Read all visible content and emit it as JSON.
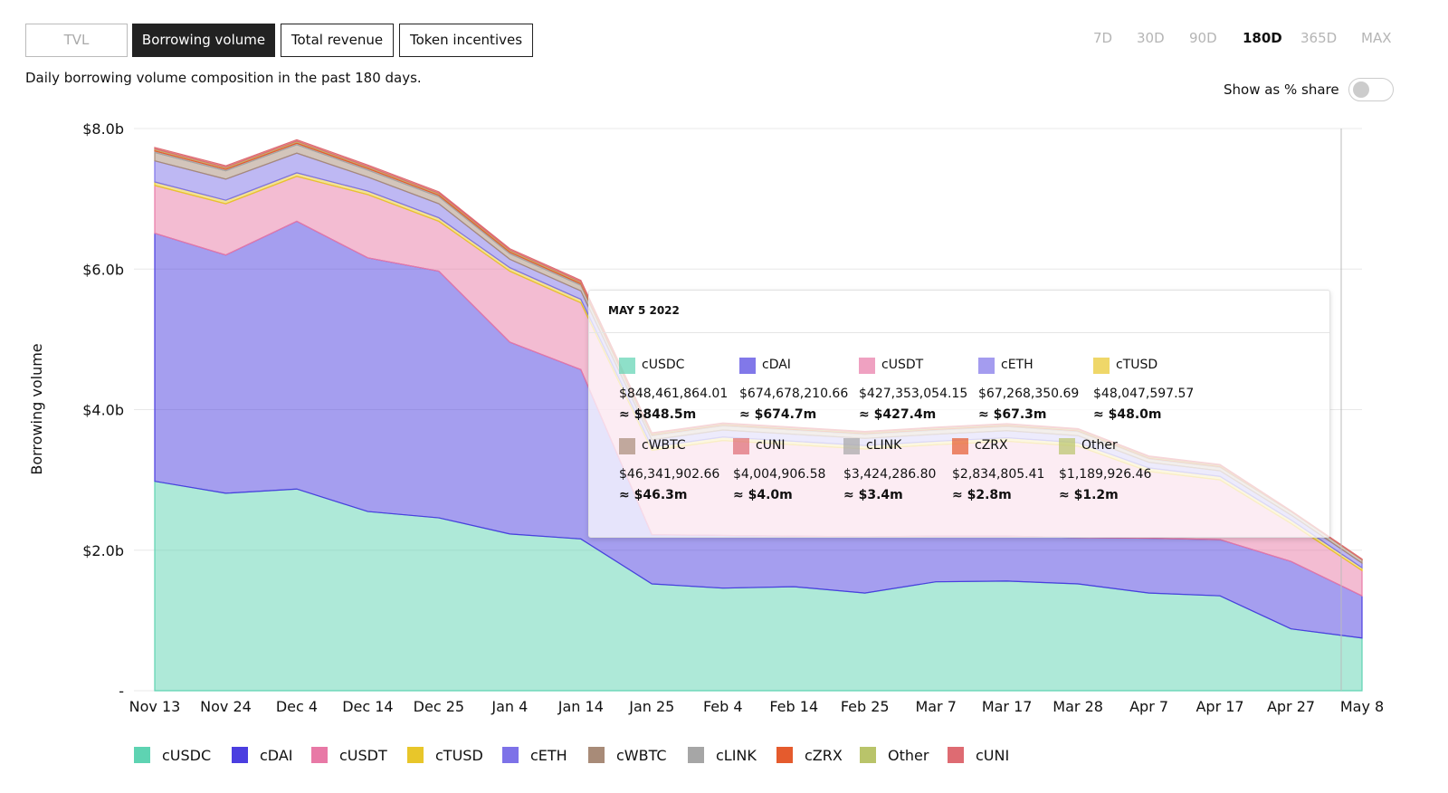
{
  "tabs": [
    "TVL",
    "Borrowing volume",
    "Total revenue",
    "Token incentives"
  ],
  "ranges": [
    "7D",
    "30D",
    "90D",
    "180D",
    "365D",
    "MAX"
  ],
  "subtitle": "Daily borrowing volume composition in the past 180 days.",
  "toggle_label": "Show as % share",
  "chart_data": {
    "type": "area",
    "stacked": true,
    "ylabel": "Borrowing volume",
    "categories": [
      "Nov 13",
      "Nov 24",
      "Dec 4",
      "Dec 14",
      "Dec 25",
      "Jan 4",
      "Jan 14",
      "Jan 25",
      "Feb 4",
      "Feb 14",
      "Feb 25",
      "Mar 7",
      "Mar 17",
      "Mar 28",
      "Apr 7",
      "Apr 17",
      "Apr 27",
      "May 8"
    ],
    "ylim": [
      0,
      8
    ],
    "yticks": [
      {
        "value": 0,
        "label": "-"
      },
      {
        "value": 2,
        "label": "$2.0b"
      },
      {
        "value": 4,
        "label": "$4.0b"
      },
      {
        "value": 6,
        "label": "$6.0b"
      },
      {
        "value": 8,
        "label": "$8.0b"
      }
    ],
    "grid": true,
    "series": [
      {
        "name": "cUSDC",
        "color": "#5ed3b2",
        "values": [
          2.98,
          2.81,
          2.87,
          2.55,
          2.46,
          2.23,
          2.16,
          1.52,
          1.46,
          1.48,
          1.39,
          1.55,
          1.56,
          1.52,
          1.39,
          1.35,
          0.88,
          0.75
        ]
      },
      {
        "name": "cDAI",
        "color": "#4b3ee0",
        "values": [
          3.53,
          3.39,
          3.81,
          3.61,
          3.51,
          2.73,
          2.41,
          0.7,
          0.75,
          0.72,
          0.8,
          0.65,
          0.64,
          0.66,
          0.78,
          0.8,
          0.96,
          0.6
        ]
      },
      {
        "name": "cUSDT",
        "color": "#e879a6",
        "values": [
          0.68,
          0.73,
          0.64,
          0.9,
          0.71,
          1.01,
          0.95,
          1.2,
          1.35,
          1.3,
          1.25,
          1.3,
          1.35,
          1.3,
          0.95,
          0.85,
          0.54,
          0.36
        ]
      },
      {
        "name": "cTUSD",
        "color": "#e8c62a",
        "values": [
          0.05,
          0.05,
          0.05,
          0.05,
          0.05,
          0.05,
          0.05,
          0.05,
          0.05,
          0.05,
          0.05,
          0.05,
          0.05,
          0.05,
          0.05,
          0.05,
          0.05,
          0.04
        ]
      },
      {
        "name": "cETH",
        "color": "#7d72e8",
        "values": [
          0.3,
          0.3,
          0.28,
          0.2,
          0.2,
          0.12,
          0.12,
          0.1,
          0.1,
          0.1,
          0.1,
          0.1,
          0.1,
          0.1,
          0.08,
          0.08,
          0.07,
          0.067
        ]
      },
      {
        "name": "cWBTC",
        "color": "#a88b78",
        "values": [
          0.12,
          0.12,
          0.12,
          0.1,
          0.1,
          0.08,
          0.08,
          0.06,
          0.06,
          0.06,
          0.06,
          0.06,
          0.06,
          0.06,
          0.05,
          0.05,
          0.05,
          0.046
        ]
      },
      {
        "name": "cLINK",
        "color": "#a6a6a6",
        "values": [
          0.02,
          0.02,
          0.02,
          0.02,
          0.02,
          0.02,
          0.02,
          0.01,
          0.01,
          0.01,
          0.01,
          0.01,
          0.01,
          0.01,
          0.01,
          0.01,
          0.004,
          0.003
        ]
      },
      {
        "name": "cZRX",
        "color": "#e55b2d",
        "values": [
          0.02,
          0.02,
          0.02,
          0.02,
          0.02,
          0.02,
          0.02,
          0.01,
          0.01,
          0.01,
          0.01,
          0.01,
          0.01,
          0.01,
          0.01,
          0.01,
          0.003,
          0.003
        ]
      },
      {
        "name": "Other",
        "color": "#b9c46a",
        "values": [
          0.01,
          0.01,
          0.01,
          0.01,
          0.01,
          0.01,
          0.01,
          0.01,
          0.01,
          0.01,
          0.01,
          0.01,
          0.01,
          0.01,
          0.01,
          0.01,
          0.001,
          0.001
        ]
      },
      {
        "name": "cUNI",
        "color": "#de6b72",
        "values": [
          0.02,
          0.02,
          0.02,
          0.02,
          0.02,
          0.02,
          0.02,
          0.01,
          0.01,
          0.01,
          0.01,
          0.01,
          0.01,
          0.01,
          0.01,
          0.01,
          0.004,
          0.004
        ]
      }
    ]
  },
  "tooltip": {
    "date": "MAY 5 2022",
    "items": [
      {
        "name": "cUSDC",
        "value": "$848,461,864.01",
        "approx": "≈ $848.5m"
      },
      {
        "name": "cDAI",
        "value": "$674,678,210.66",
        "approx": "≈ $674.7m"
      },
      {
        "name": "cUSDT",
        "value": "$427,353,054.15",
        "approx": "≈ $427.4m"
      },
      {
        "name": "cETH",
        "value": "$67,268,350.69",
        "approx": "≈ $67.3m"
      },
      {
        "name": "cTUSD",
        "value": "$48,047,597.57",
        "approx": "≈ $48.0m"
      },
      {
        "name": "cWBTC",
        "value": "$46,341,902.66",
        "approx": "≈ $46.3m"
      },
      {
        "name": "cUNI",
        "value": "$4,004,906.58",
        "approx": "≈ $4.0m"
      },
      {
        "name": "cLINK",
        "value": "$3,424,286.80",
        "approx": "≈ $3.4m"
      },
      {
        "name": "cZRX",
        "value": "$2,834,805.41",
        "approx": "≈ $2.8m"
      },
      {
        "name": "Other",
        "value": "$1,189,926.46",
        "approx": "≈ $1.2m"
      }
    ]
  }
}
